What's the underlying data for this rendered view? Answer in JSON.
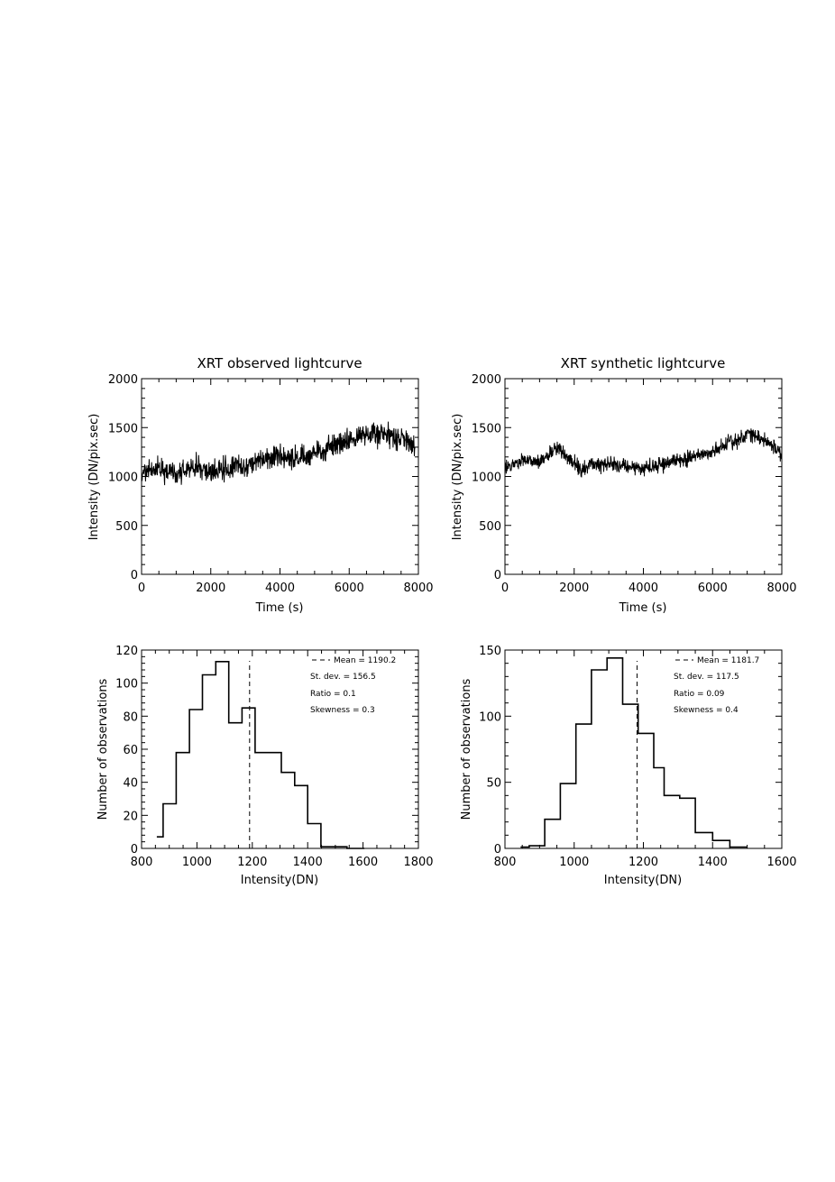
{
  "chart_data": [
    {
      "type": "line",
      "title": "XRT observed lightcurve",
      "xlabel": "Time (s)",
      "ylabel": "Intensity (DN/pix.sec)",
      "xlim": [
        0,
        8000
      ],
      "ylim": [
        0,
        2000
      ],
      "xticks": [
        "0",
        "2000",
        "4000",
        "6000",
        "8000"
      ],
      "yticks": [
        "0",
        "500",
        "1000",
        "1500",
        "2000"
      ],
      "grid": false,
      "x": [
        0,
        500,
        1000,
        1500,
        2000,
        2500,
        3000,
        3500,
        4000,
        4500,
        5000,
        5500,
        6000,
        6500,
        7000,
        7500,
        7900
      ],
      "y": [
        1050,
        1080,
        1020,
        1090,
        1060,
        1080,
        1110,
        1170,
        1210,
        1180,
        1230,
        1310,
        1360,
        1440,
        1430,
        1380,
        1310
      ],
      "noise_amplitude": 90
    },
    {
      "type": "line",
      "title": "XRT synthetic lightcurve",
      "xlabel": "Time (s)",
      "ylabel": "Intensity (DN/pix.sec)",
      "xlim": [
        0,
        8000
      ],
      "ylim": [
        0,
        2000
      ],
      "xticks": [
        "0",
        "2000",
        "4000",
        "6000",
        "8000"
      ],
      "yticks": [
        "0",
        "500",
        "1000",
        "1500",
        "2000"
      ],
      "grid": false,
      "x": [
        0,
        500,
        1000,
        1500,
        1800,
        2200,
        2500,
        3000,
        3500,
        4000,
        4500,
        5000,
        5500,
        6000,
        6500,
        7000,
        7500,
        8000
      ],
      "y": [
        1080,
        1160,
        1150,
        1290,
        1200,
        1060,
        1110,
        1140,
        1100,
        1090,
        1120,
        1160,
        1200,
        1240,
        1340,
        1440,
        1370,
        1230
      ],
      "noise_amplitude": 60
    },
    {
      "type": "histogram",
      "xlabel": "Intensity(DN)",
      "ylabel": "Number of observations",
      "xlim": [
        800,
        1800
      ],
      "ylim": [
        0,
        120
      ],
      "xticks": [
        "800",
        "1000",
        "1200",
        "1400",
        "1600",
        "1800"
      ],
      "yticks": [
        "0",
        "20",
        "40",
        "60",
        "80",
        "100",
        "120"
      ],
      "bin_edges": [
        855,
        878,
        925,
        973,
        1020,
        1068,
        1115,
        1163,
        1210,
        1258,
        1305,
        1353,
        1400,
        1448,
        1495,
        1542,
        1590,
        1605
      ],
      "counts": [
        7,
        27,
        58,
        84,
        105,
        113,
        76,
        85,
        58,
        58,
        46,
        38,
        15,
        1,
        1,
        0,
        0
      ],
      "mean_line": 1190.2,
      "legend": {
        "mean": "Mean = 1190.2",
        "stdev": "St. dev. = 156.5",
        "ratio": "Ratio =  0.1",
        "skewness": "Skewness =  0.3"
      }
    },
    {
      "type": "histogram",
      "xlabel": "Intensity(DN)",
      "ylabel": "Number of observations",
      "xlim": [
        800,
        1600
      ],
      "ylim": [
        0,
        150
      ],
      "xticks": [
        "800",
        "1000",
        "1200",
        "1400",
        "1600"
      ],
      "yticks": [
        "0",
        "50",
        "100",
        "150"
      ],
      "bin_edges": [
        845,
        870,
        915,
        960,
        1005,
        1050,
        1095,
        1140,
        1185,
        1230,
        1260,
        1305,
        1350,
        1400,
        1450,
        1500
      ],
      "counts": [
        1,
        2,
        22,
        49,
        94,
        135,
        144,
        109,
        87,
        61,
        40,
        38,
        12,
        6,
        1
      ],
      "mean_line": 1181.7,
      "legend": {
        "mean": "Mean = 1181.7",
        "stdev": "St. dev. = 117.5",
        "ratio": "Ratio = 0.09",
        "skewness": "Skewness =  0.4"
      }
    }
  ]
}
